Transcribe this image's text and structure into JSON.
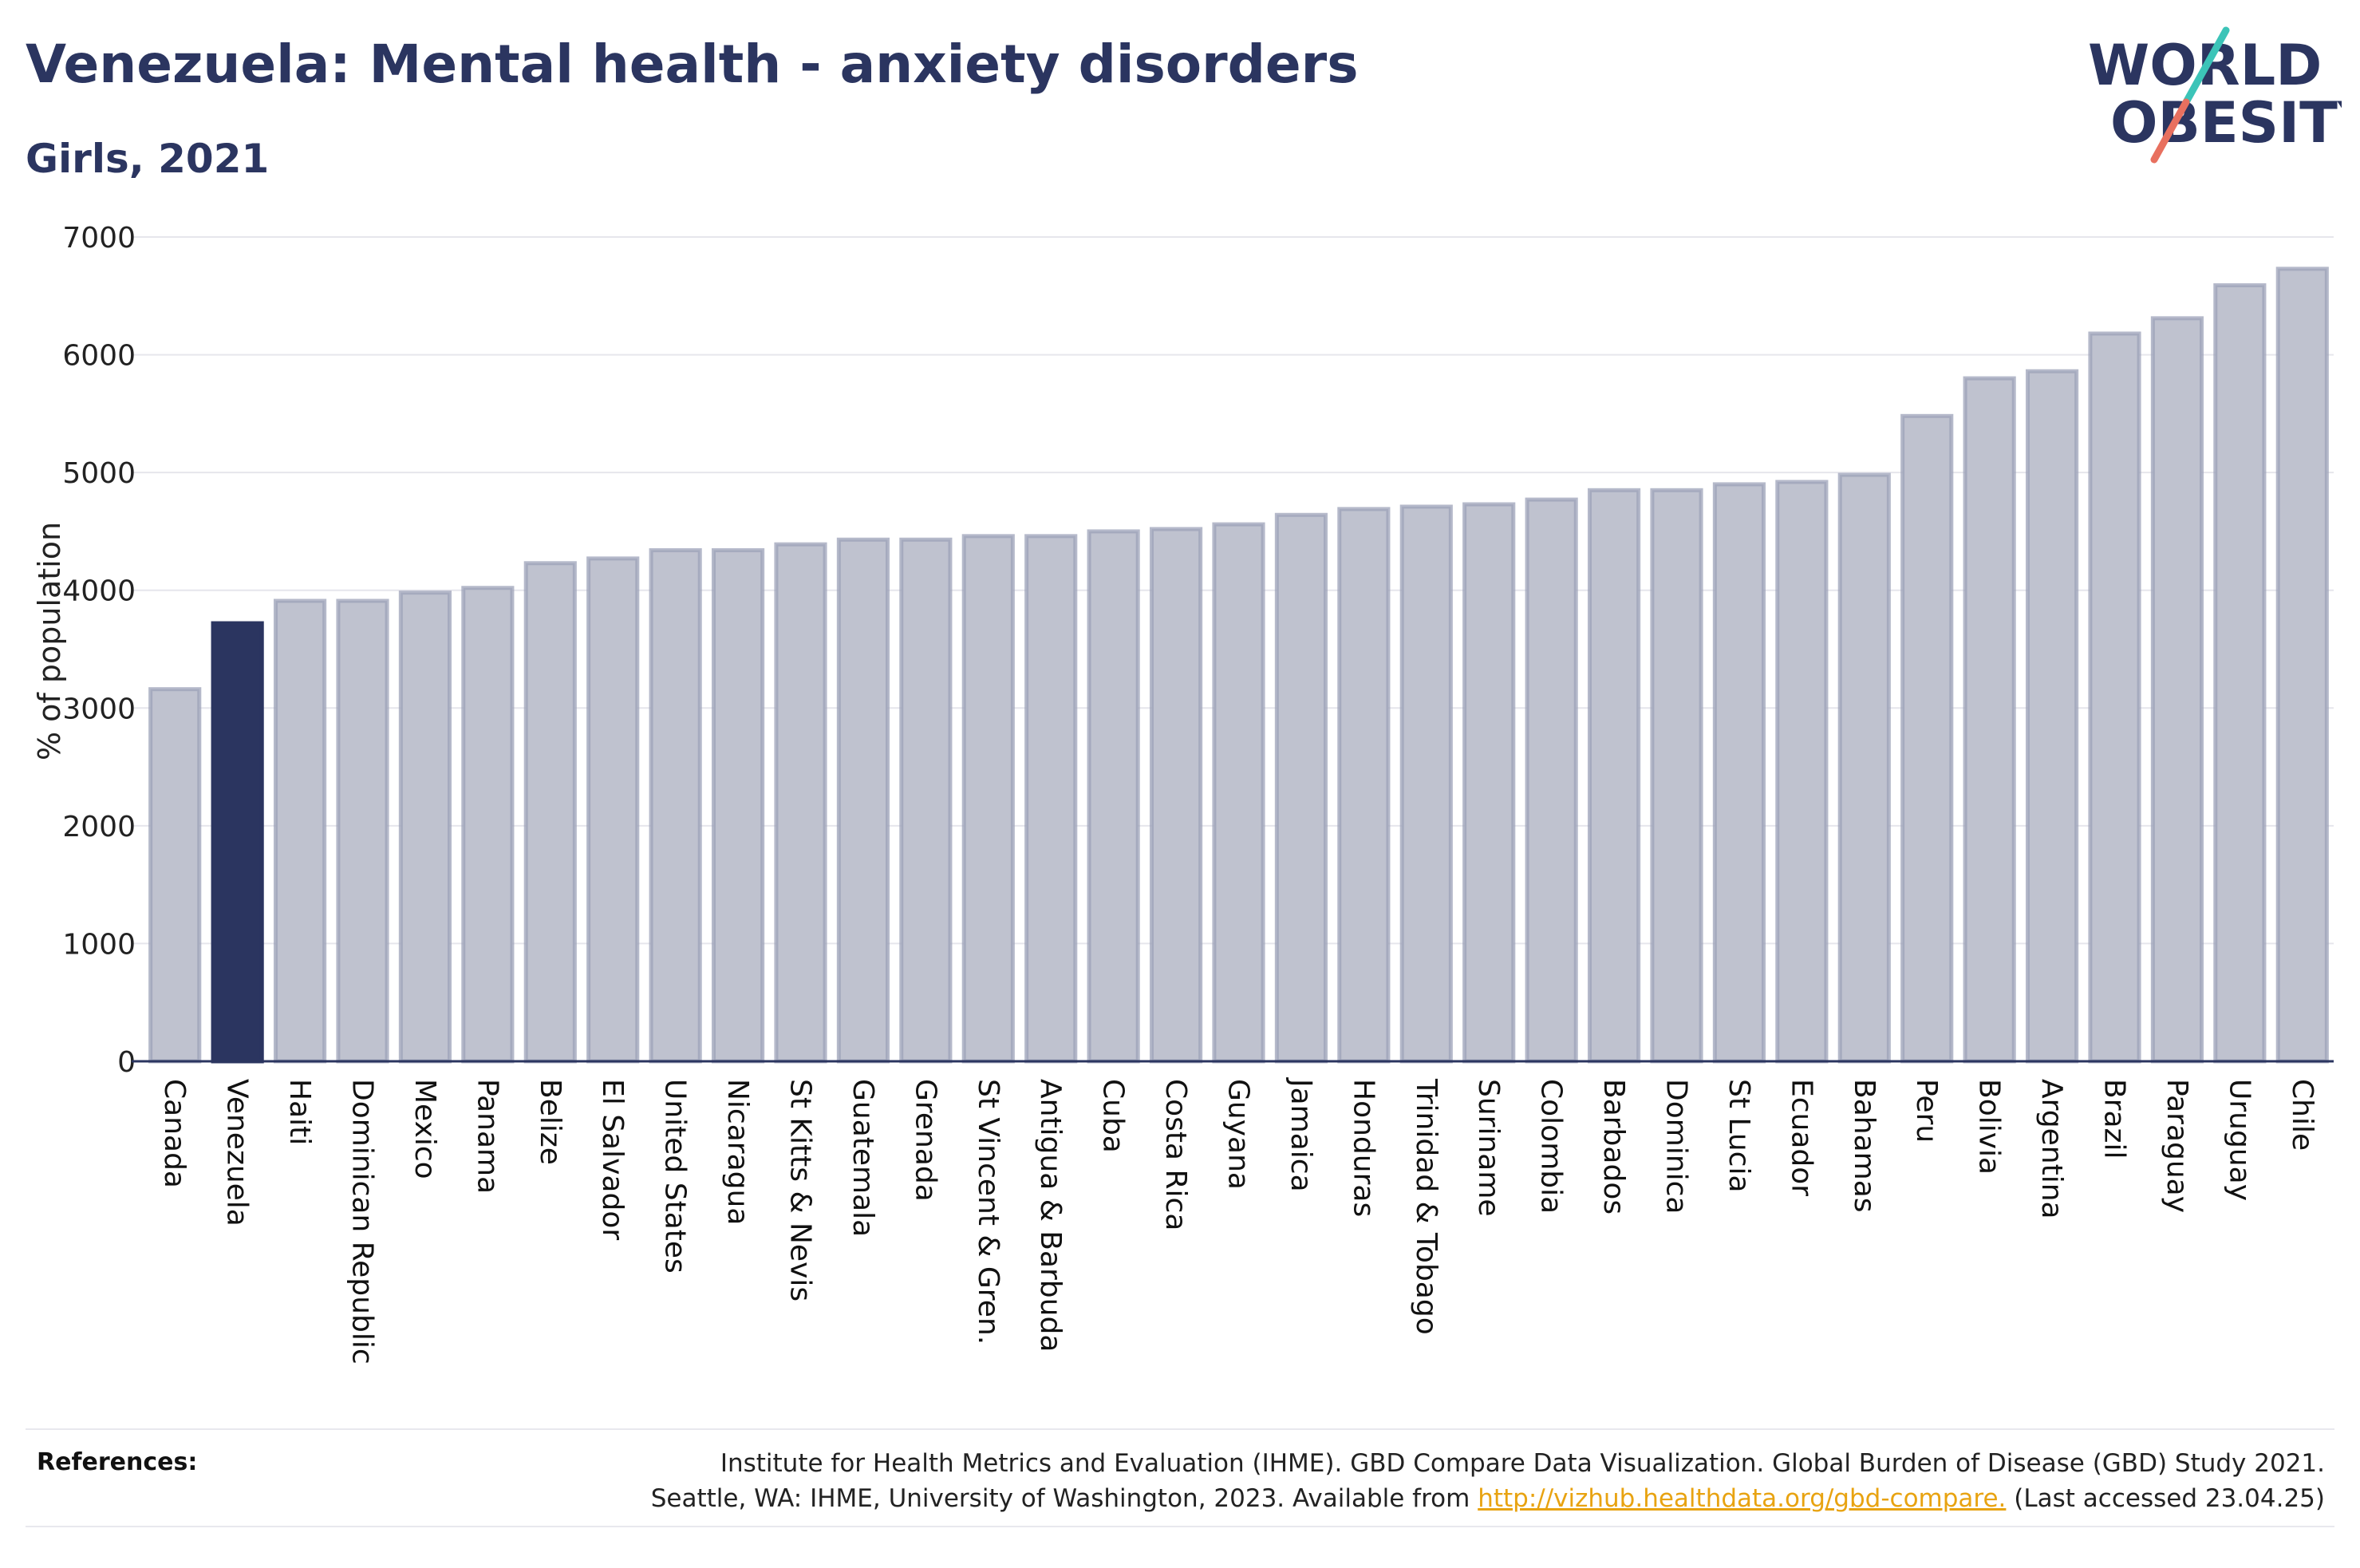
{
  "header": {
    "title": "Venezuela: Mental health - anxiety disorders",
    "subtitle": "Girls, 2021"
  },
  "logo": {
    "line1": "WORLD",
    "line2": "OBESITY",
    "slash_colors": [
      "#e8705f",
      "#3cc4b8"
    ]
  },
  "chart_data": {
    "type": "bar",
    "title": "Venezuela: Mental health - anxiety disorders",
    "subtitle": "Girls, 2021",
    "xlabel": "",
    "ylabel": "% of population",
    "ylim": [
      0,
      7000
    ],
    "yticks": [
      "0",
      "1000",
      "2000",
      "3000",
      "4000",
      "5000",
      "6000",
      "7000"
    ],
    "grid": true,
    "highlight": "Venezuela",
    "colors": {
      "bar": "#bfc2cf",
      "bar_border": "#9ca1b8",
      "highlight": "#2b3560"
    },
    "categories": [
      "Canada",
      "Venezuela",
      "Haiti",
      "Dominican Republic",
      "Mexico",
      "Panama",
      "Belize",
      "El Salvador",
      "United States",
      "Nicaragua",
      "St Kitts & Nevis",
      "Guatemala",
      "Grenada",
      "St Vincent & Gren.",
      "Antigua & Barbuda",
      "Cuba",
      "Costa Rica",
      "Guyana",
      "Jamaica",
      "Honduras",
      "Trinidad & Tobago",
      "Suriname",
      "Colombia",
      "Barbados",
      "Dominica",
      "St Lucia",
      "Ecuador",
      "Bahamas",
      "Peru",
      "Bolivia",
      "Argentina",
      "Brazil",
      "Paraguay",
      "Uruguay",
      "Chile"
    ],
    "values": [
      3160,
      3720,
      3910,
      3910,
      3980,
      4020,
      4230,
      4270,
      4340,
      4340,
      4390,
      4430,
      4430,
      4460,
      4460,
      4500,
      4520,
      4560,
      4640,
      4690,
      4710,
      4730,
      4770,
      4850,
      4850,
      4900,
      4920,
      4980,
      5480,
      5800,
      5860,
      6180,
      6310,
      6590,
      6730
    ]
  },
  "references": {
    "label": "References:",
    "line1": "Institute for Health Metrics and Evaluation (IHME). GBD Compare Data Visualization. Global Burden of Disease (GBD) Study 2021.",
    "line2_prefix": "Seattle, WA: IHME, University of Washington, 2023. Available from ",
    "link": "http://vizhub.healthdata.org/gbd-compare.",
    "line2_suffix": " (Last accessed 23.04.25)"
  }
}
